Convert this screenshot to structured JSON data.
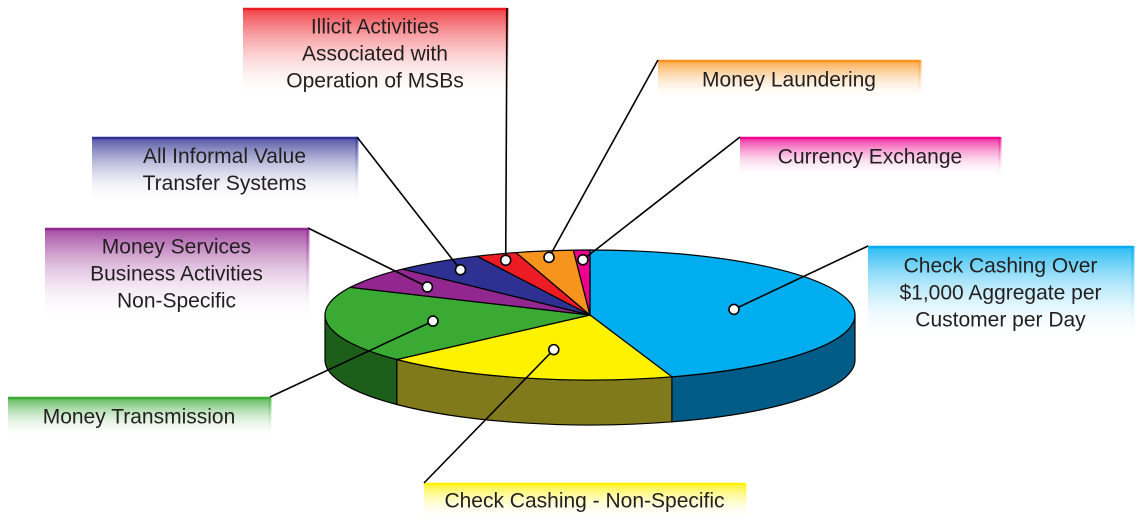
{
  "chart_data": {
    "type": "pie3d",
    "categories": [
      [
        "Check Cashing Over",
        "$1,000 Aggregate per",
        "Customer per Day"
      ],
      [
        "Check Cashing - Non-Specific"
      ],
      [
        "Money Transmission"
      ],
      [
        "Money Services",
        "Business Activities",
        "Non-Specific"
      ],
      [
        "All Informal Value",
        "Transfer Systems"
      ],
      [
        "Illicit Activities",
        "Associated with",
        "Operation of MSBs"
      ],
      [
        "Money Laundering"
      ],
      [
        "Currency Exchange"
      ]
    ],
    "values": [
      45,
      18,
      19,
      5.5,
      5.5,
      2.5,
      3.5,
      1
    ],
    "colors": [
      "#00aeef",
      "#fff200",
      "#3aaa35",
      "#92278f",
      "#2e3192",
      "#ed1c24",
      "#f7941d",
      "#ec008c"
    ],
    "side_colors": [
      "#005b86",
      "#807a1c",
      "#1d5e1a",
      "#4a1448",
      "#1a1c55",
      "#7a0e12",
      "#8a520f",
      "#7a0048"
    ]
  }
}
